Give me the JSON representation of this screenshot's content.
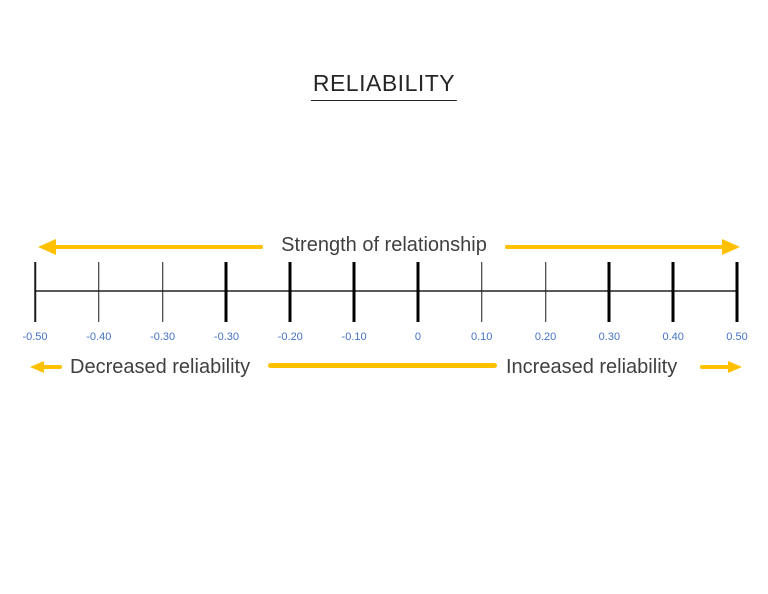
{
  "title": "RELIABILITY",
  "top_arrow": {
    "label": "Strength of relationship"
  },
  "bottom": {
    "left_label": "Decreased reliability",
    "right_label": "Increased reliability"
  },
  "axis": {
    "ticks": [
      {
        "label": "-0.50",
        "weight": "thin"
      },
      {
        "label": "-0.40",
        "weight": "thin"
      },
      {
        "label": "-0.30",
        "weight": "thin"
      },
      {
        "label": "-0.30",
        "weight": "thick"
      },
      {
        "label": "-0.20",
        "weight": "thick"
      },
      {
        "label": "-0.10",
        "weight": "thick"
      },
      {
        "label": "0",
        "weight": "thick"
      },
      {
        "label": "0.10",
        "weight": "thin"
      },
      {
        "label": "0.20",
        "weight": "thin"
      },
      {
        "label": "0.30",
        "weight": "thick"
      },
      {
        "label": "0.40",
        "weight": "thick"
      },
      {
        "label": "0.50",
        "weight": "thick"
      }
    ],
    "range": [
      -0.5,
      0.5
    ]
  },
  "colors": {
    "arrow": "#FFC000",
    "tick_label": "#4472C4",
    "text": "#404040",
    "axis_line": "#595959",
    "title_text": "#262626"
  }
}
